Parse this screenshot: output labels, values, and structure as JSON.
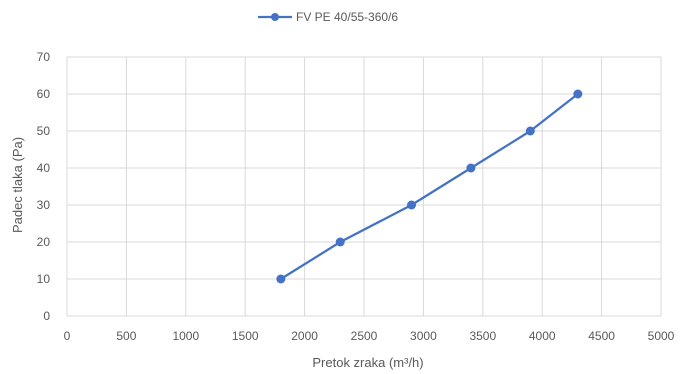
{
  "chart_data": {
    "type": "line",
    "title": "",
    "xlabel": "Pretok zraka (m³/h)",
    "ylabel": "Padec tlaka (Pa)",
    "xlim": [
      0,
      5000
    ],
    "ylim": [
      0,
      70
    ],
    "x_ticks": [
      0,
      500,
      1000,
      1500,
      2000,
      2500,
      3000,
      3500,
      4000,
      4500,
      5000
    ],
    "y_ticks": [
      0,
      10,
      20,
      30,
      40,
      50,
      60,
      70
    ],
    "grid": true,
    "legend_position": "top",
    "series": [
      {
        "name": "FV PE 40/55-360/6",
        "color": "#4472c4",
        "marker": "circle",
        "x": [
          1800,
          2300,
          2900,
          3400,
          3900,
          4300
        ],
        "y": [
          10,
          20,
          30,
          40,
          50,
          60
        ]
      }
    ]
  }
}
